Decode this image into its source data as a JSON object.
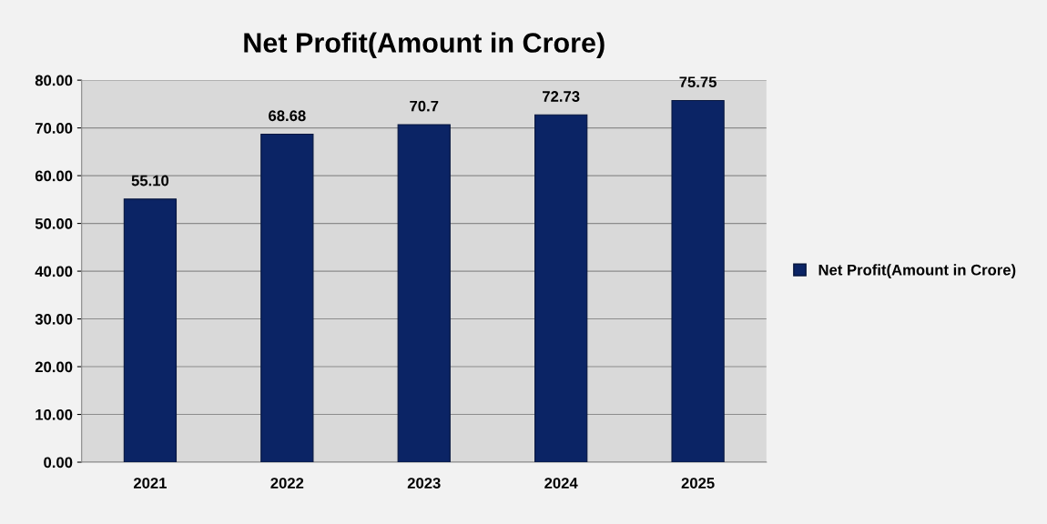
{
  "chart_data": {
    "type": "bar",
    "title": "Net Profit(Amount in Crore)",
    "categories": [
      "2021",
      "2022",
      "2023",
      "2024",
      "2025"
    ],
    "series": [
      {
        "name": "Net Profit(Amount in Crore)",
        "color": "#0b2465",
        "values": [
          55.1,
          68.68,
          70.7,
          72.73,
          75.75
        ],
        "value_labels": [
          "55.10",
          "68.68",
          "70.7",
          "72.73",
          "75.75"
        ]
      }
    ],
    "ylim": [
      0,
      80
    ],
    "yticks": [
      {
        "value": 0,
        "label": "0.00"
      },
      {
        "value": 10,
        "label": "10.00"
      },
      {
        "value": 20,
        "label": "20.00"
      },
      {
        "value": 30,
        "label": "30.00"
      },
      {
        "value": 40,
        "label": "40.00"
      },
      {
        "value": 50,
        "label": "50.00"
      },
      {
        "value": 60,
        "label": "60.00"
      },
      {
        "value": 70,
        "label": "70.00"
      },
      {
        "value": 80,
        "label": "80.00"
      }
    ],
    "grid": "y",
    "legend": "right"
  }
}
